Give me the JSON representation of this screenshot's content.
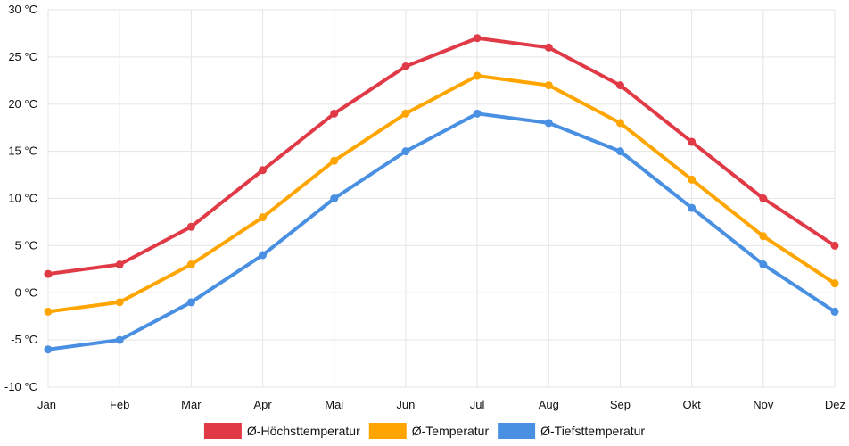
{
  "chart_data": {
    "type": "line",
    "title": "",
    "xlabel": "",
    "ylabel": "",
    "categories": [
      "Jan",
      "Feb",
      "Mär",
      "Apr",
      "Mai",
      "Jun",
      "Jul",
      "Aug",
      "Sep",
      "Okt",
      "Nov",
      "Dez"
    ],
    "ylim": [
      -10,
      30
    ],
    "y_ticks": [
      30,
      25,
      20,
      15,
      10,
      5,
      0,
      -5,
      -10
    ],
    "y_tick_labels": [
      "30 °C",
      "25 °C",
      "20 °C",
      "15 °C",
      "10 °C",
      "5 °C",
      "0 °C",
      "-5 °C",
      "-10 °C"
    ],
    "grid": true,
    "legend_position": "bottom",
    "series": [
      {
        "name": "Ø-Höchsttemperatur",
        "color": "#e03a47",
        "values": [
          2,
          3,
          7,
          13,
          19,
          24,
          27,
          26,
          22,
          16,
          10,
          5
        ]
      },
      {
        "name": "Ø-Temperatur",
        "color": "#ffa500",
        "values": [
          -2,
          -1,
          3,
          8,
          14,
          19,
          23,
          22,
          18,
          12,
          6,
          1
        ]
      },
      {
        "name": "Ø-Tiefsttemperatur",
        "color": "#4a90e2",
        "values": [
          -6,
          -5,
          -1,
          4,
          10,
          15,
          19,
          18,
          15,
          9,
          3,
          -2
        ]
      }
    ]
  }
}
